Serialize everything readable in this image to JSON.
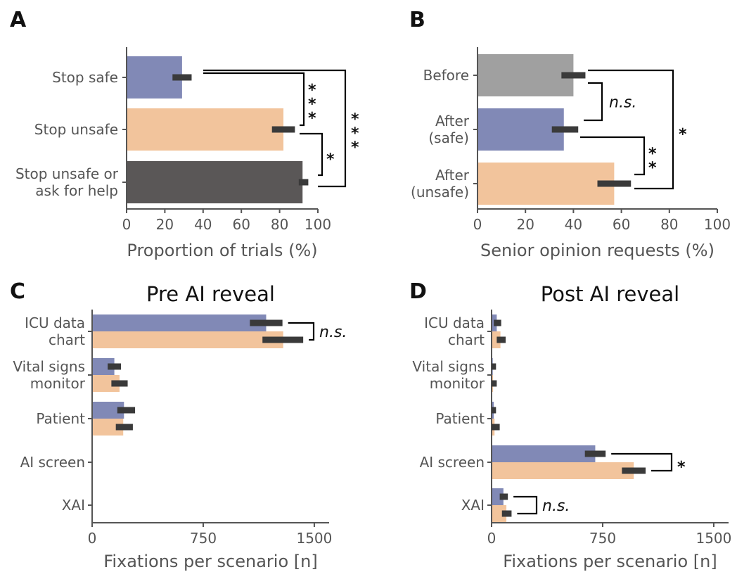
{
  "colors": {
    "safe": "#8189b6",
    "unsafe": "#f2c49c",
    "help": "#5a5757",
    "before": "#a0a0a0",
    "error": "#3a3a3a",
    "axis": "#555555"
  },
  "chart_data": [
    {
      "panel": "A",
      "type": "bar",
      "orientation": "horizontal",
      "categories": [
        "Stop safe",
        "Stop unsafe",
        "Stop unsafe or\nask for help"
      ],
      "values": [
        29,
        82,
        92
      ],
      "errors": [
        [
          24,
          34
        ],
        [
          76,
          88
        ],
        [
          90,
          95
        ]
      ],
      "bar_colors": [
        "safe",
        "unsafe",
        "help"
      ],
      "xlabel": "Proportion of trials (%)",
      "xlim": [
        0,
        100
      ],
      "xticks": [
        "0",
        "20",
        "40",
        "60",
        "80",
        "100"
      ],
      "significance": [
        {
          "between": [
            0,
            1
          ],
          "label": "***"
        },
        {
          "between": [
            1,
            2
          ],
          "label": "*"
        },
        {
          "between": [
            0,
            2
          ],
          "label": "***"
        }
      ]
    },
    {
      "panel": "B",
      "type": "bar",
      "orientation": "horizontal",
      "categories": [
        "Before",
        "After\n(safe)",
        "After\n(unsafe)"
      ],
      "values": [
        40,
        36,
        57
      ],
      "errors": [
        [
          35,
          45
        ],
        [
          31,
          42
        ],
        [
          50,
          64
        ]
      ],
      "bar_colors": [
        "before",
        "safe",
        "unsafe"
      ],
      "xlabel": "Senior opinion requests (%)",
      "xlim": [
        0,
        100
      ],
      "xticks": [
        "0",
        "20",
        "40",
        "60",
        "80",
        "100"
      ],
      "significance": [
        {
          "between": [
            0,
            1
          ],
          "label": "n.s."
        },
        {
          "between": [
            1,
            2
          ],
          "label": "**"
        },
        {
          "between": [
            0,
            2
          ],
          "label": "*"
        }
      ]
    },
    {
      "panel": "C",
      "type": "bar",
      "orientation": "horizontal-grouped",
      "title": "Pre AI reveal",
      "categories": [
        "ICU data\nchart",
        "Vital signs\nmonitor",
        "Patient",
        "AI screen",
        "XAI"
      ],
      "series": [
        {
          "values": [
            1175,
            150,
            215,
            0,
            0
          ],
          "errors": [
            [
              1065,
              1285
            ],
            [
              105,
              195
            ],
            [
              170,
              290
            ],
            [
              0,
              0
            ],
            [
              0,
              0
            ]
          ]
        },
        {
          "values": [
            1290,
            185,
            210,
            0,
            0
          ],
          "errors": [
            [
              1150,
              1425
            ],
            [
              130,
              240
            ],
            [
              160,
              275
            ],
            [
              0,
              0
            ],
            [
              0,
              0
            ]
          ]
        }
      ],
      "series_colors": [
        "safe",
        "unsafe"
      ],
      "xlabel": "Fixations per scenario [n]",
      "xlim": [
        0,
        1600
      ],
      "xticks": [
        "0",
        "750",
        "1500"
      ],
      "significance": [
        {
          "category": 0,
          "label": "n.s."
        }
      ]
    },
    {
      "panel": "D",
      "type": "bar",
      "orientation": "horizontal-grouped",
      "title": "Post AI reveal",
      "categories": [
        "ICU data\nchart",
        "Vital signs\nmonitor",
        "Patient",
        "AI screen",
        "XAI"
      ],
      "series": [
        {
          "values": [
            35,
            8,
            15,
            700,
            80
          ],
          "errors": [
            [
              15,
              65
            ],
            [
              0,
              30
            ],
            [
              0,
              30
            ],
            [
              630,
              770
            ],
            [
              55,
              110
            ]
          ]
        },
        {
          "values": [
            60,
            10,
            20,
            960,
            100
          ],
          "errors": [
            [
              35,
              95
            ],
            [
              0,
              35
            ],
            [
              0,
              55
            ],
            [
              880,
              1040
            ],
            [
              70,
              135
            ]
          ]
        }
      ],
      "series_colors": [
        "safe",
        "unsafe"
      ],
      "xlabel": "Fixations per scenario [n]",
      "xlim": [
        0,
        1600
      ],
      "xticks": [
        "0",
        "750",
        "1500"
      ],
      "significance": [
        {
          "category": 3,
          "label": "*"
        },
        {
          "category": 4,
          "label": "n.s."
        }
      ]
    }
  ]
}
